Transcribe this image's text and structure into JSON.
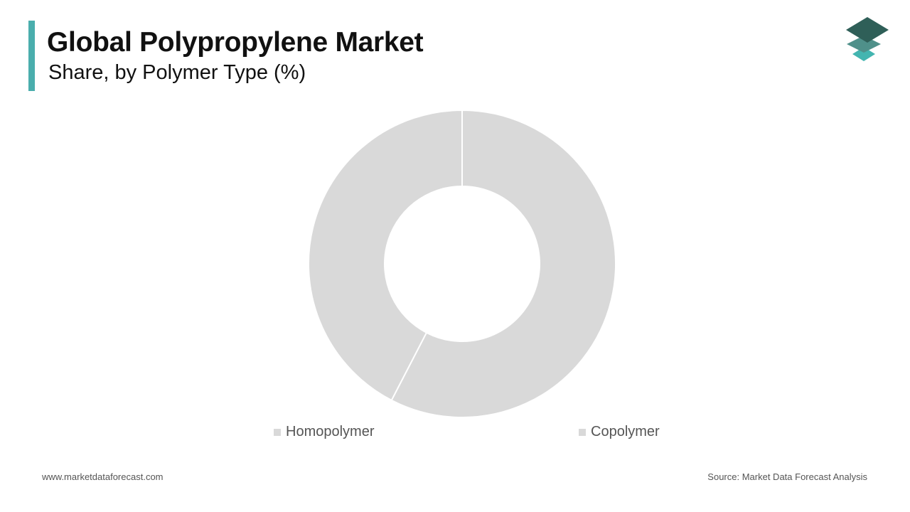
{
  "header": {
    "title": "Global Polypropylene Market",
    "subtitle": "Share, by Polymer Type (%)"
  },
  "colors": {
    "accent": "#4aaead",
    "slice": "#d9d9d9",
    "logo_top": "#2f5f58",
    "logo_mid": "#4f908a",
    "logo_bottom": "#43b5b0"
  },
  "chart_data": {
    "type": "pie",
    "variant": "donut",
    "categories": [
      "Homopolymer",
      "Copolymer"
    ],
    "values": [
      57.6,
      42.4
    ],
    "title": "Global Polypropylene Market",
    "subtitle": "Share, by Polymer Type (%)",
    "legend_position": "bottom",
    "data_labels": false
  },
  "footer": {
    "website": "www.marketdataforecast.com",
    "source": "Source: Market Data Forecast Analysis"
  }
}
